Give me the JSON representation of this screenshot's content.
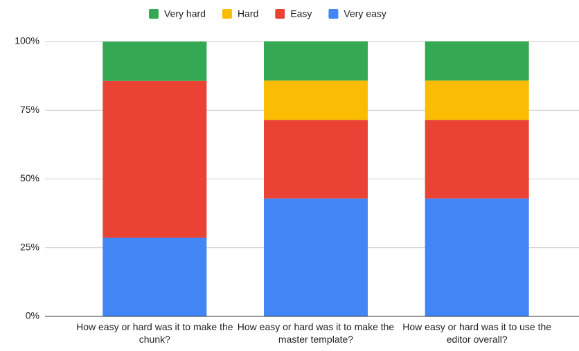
{
  "chart_data": {
    "type": "stacked_bar",
    "categories": [
      "How easy or hard was it to make the chunk?",
      "How easy or hard was it to make the master template?",
      "How easy or hard was it to use the editor overall?"
    ],
    "series": [
      {
        "name": "Very hard",
        "color": "#34a853",
        "values": [
          14.3,
          14.3,
          14.3
        ]
      },
      {
        "name": "Hard",
        "color": "#fbbc04",
        "values": [
          0,
          14.3,
          14.3
        ]
      },
      {
        "name": "Easy",
        "color": "#ea4335",
        "values": [
          57.1,
          28.6,
          28.6
        ]
      },
      {
        "name": "Very easy",
        "color": "#4285f4",
        "values": [
          28.6,
          42.9,
          42.9
        ]
      }
    ],
    "ylim": [
      0,
      100
    ],
    "yticks": [
      {
        "value": 0,
        "label": "0%"
      },
      {
        "value": 25,
        "label": "25%"
      },
      {
        "value": 50,
        "label": "50%"
      },
      {
        "value": 75,
        "label": "75%"
      },
      {
        "value": 100,
        "label": "100%"
      }
    ],
    "grid": true,
    "legend": "top"
  }
}
